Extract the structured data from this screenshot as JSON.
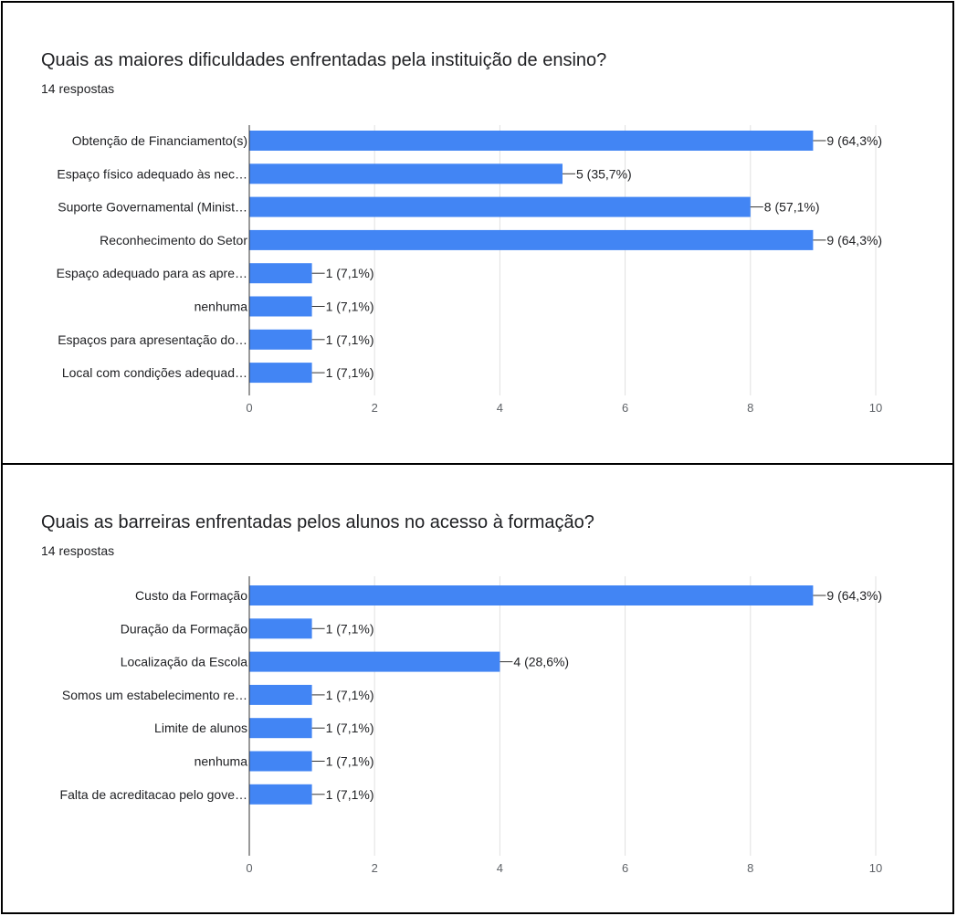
{
  "colors": {
    "bar": "#4285f4",
    "grid": "#e0e0e0",
    "axis": "#333333",
    "text": "#202124"
  },
  "chart_data": [
    {
      "type": "bar",
      "orientation": "horizontal",
      "title": "Quais as maiores dificuldades enfrentadas pela instituição de ensino?",
      "subtitle": "14 respostas",
      "categories": [
        "Obtenção de Financiamento(s)",
        "Espaço físico adequado às nec…",
        "Suporte Governamental (Minist…",
        "Reconhecimento do Setor",
        "Espaço adequado para as apre…",
        "nenhuma",
        "Espaços para apresentação do…",
        "Local com condições adequad…"
      ],
      "values": [
        9,
        5,
        8,
        9,
        1,
        1,
        1,
        1
      ],
      "value_labels": [
        "9 (64,3%)",
        "5 (35,7%)",
        "8 (57,1%)",
        "9 (64,3%)",
        "1 (7,1%)",
        "1 (7,1%)",
        "1 (7,1%)",
        "1 (7,1%)"
      ],
      "xlim": [
        0,
        10
      ],
      "xticks": [
        0,
        2,
        4,
        6,
        8,
        10
      ],
      "grid": true
    },
    {
      "type": "bar",
      "orientation": "horizontal",
      "title": "Quais as barreiras enfrentadas pelos alunos no acesso à formação?",
      "subtitle": "14 respostas",
      "categories": [
        "Custo da Formação",
        "Duração da Formação",
        "Localização da Escola",
        "Somos um estabelecimento re…",
        "Limite de alunos",
        "nenhuma",
        "Falta de acreditacao pelo gove…"
      ],
      "values": [
        9,
        1,
        4,
        1,
        1,
        1,
        1
      ],
      "value_labels": [
        "9 (64,3%)",
        "1 (7,1%)",
        "4 (28,6%)",
        "1 (7,1%)",
        "1 (7,1%)",
        "1 (7,1%)",
        "1 (7,1%)"
      ],
      "xlim": [
        0,
        10
      ],
      "xticks": [
        0,
        2,
        4,
        6,
        8,
        10
      ],
      "grid": true
    }
  ]
}
